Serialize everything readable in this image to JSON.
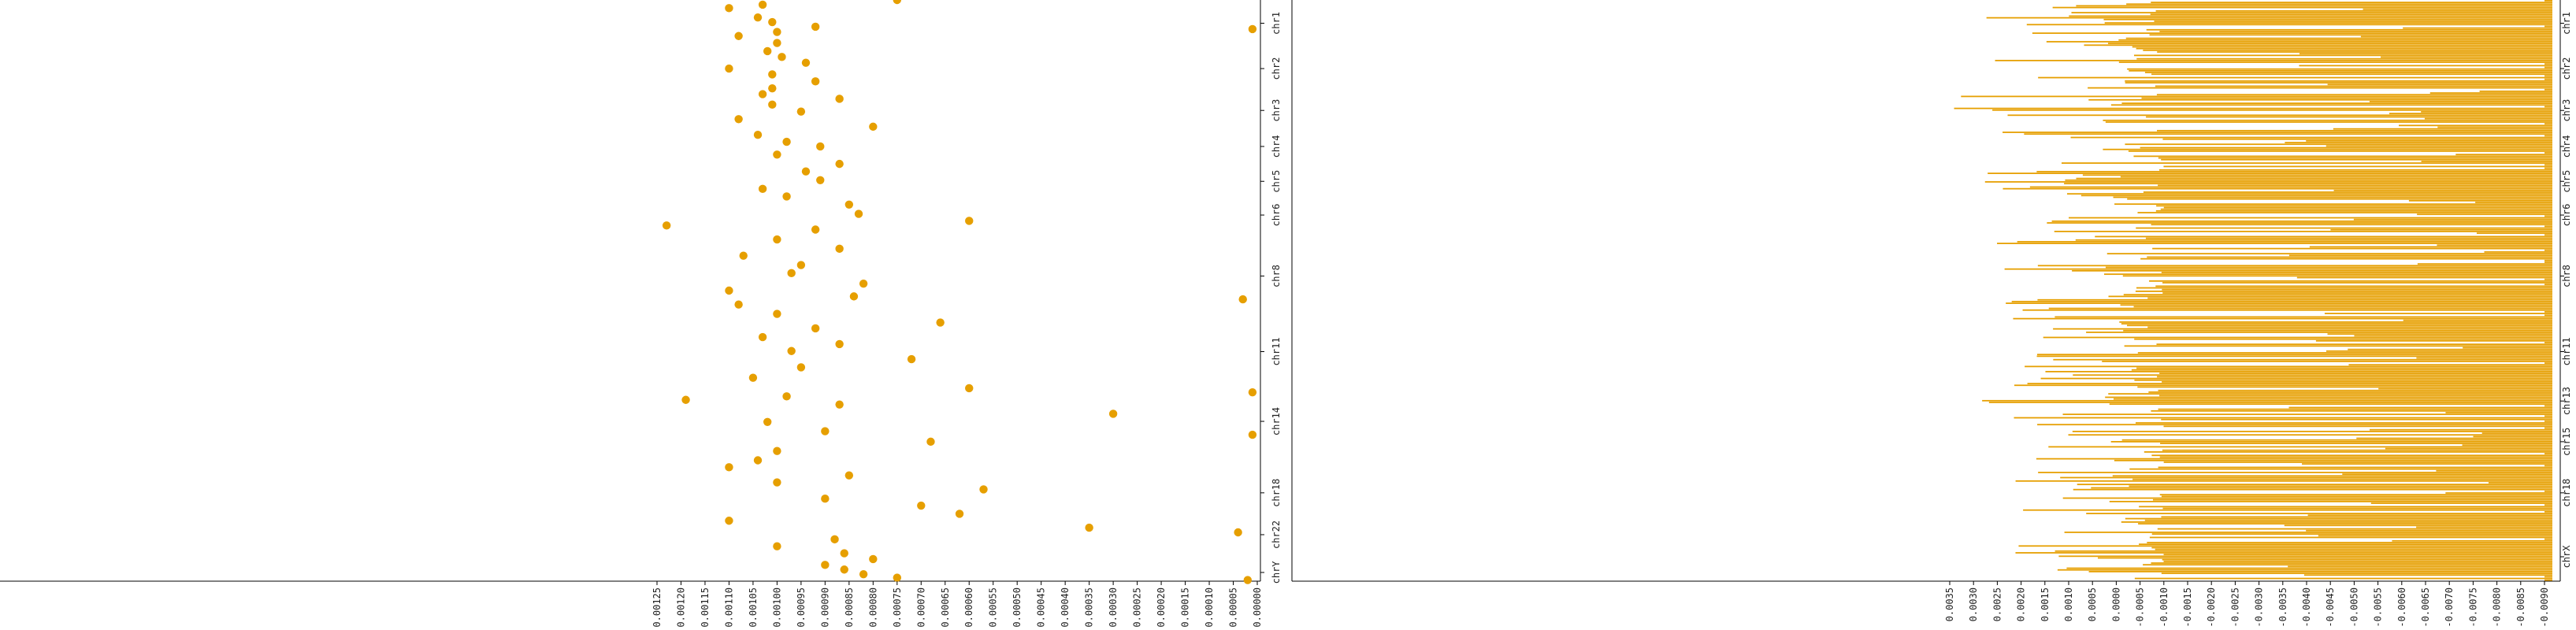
{
  "colors": {
    "accent": "#E69F00",
    "axis": "#000000",
    "text": "#222222",
    "background": "#ffffff"
  },
  "chart_data": [
    {
      "type": "scatter",
      "title": "",
      "xlabel": "",
      "ylabel": "",
      "grid": false,
      "chromosomes": [
        "chr1",
        "chr2",
        "chr3",
        "chr4",
        "chr5",
        "chr6",
        "chr8",
        "chr11",
        "chr14",
        "chr18",
        "chr22",
        "chrY"
      ],
      "x_ticks": [
        "0.00125",
        "0.00120",
        "0.00115",
        "0.00110",
        "0.00105",
        "0.00100",
        "0.00095",
        "0.00090",
        "0.00085",
        "0.00080",
        "0.00075",
        "0.00070",
        "0.00065",
        "0.00060",
        "0.00055",
        "0.00050",
        "0.00045",
        "0.00040",
        "0.00035",
        "0.00030",
        "0.00025",
        "0.00020",
        "0.00015",
        "0.00010",
        "0.00005",
        "0.00000"
      ],
      "xlim": [
        0.00125,
        0.0
      ],
      "points": [
        {
          "x": 0.00104,
          "y": 0.03
        },
        {
          "x": 0.00101,
          "y": 0.038
        },
        {
          "x": 0.00092,
          "y": 0.046
        },
        {
          "x": 0.001,
          "y": 0.055
        },
        {
          "x": 0.00108,
          "y": 0.062
        },
        {
          "x": 0.001,
          "y": 0.074
        },
        {
          "x": 0.00102,
          "y": 0.088
        },
        {
          "x": 0.00099,
          "y": 0.098
        },
        {
          "x": 0.00094,
          "y": 0.108
        },
        {
          "x": 0.0011,
          "y": 0.118
        },
        {
          "x": 0.00101,
          "y": 0.128
        },
        {
          "x": 0.00092,
          "y": 0.14
        },
        {
          "x": 0.00101,
          "y": 0.152
        },
        {
          "x": 0.00103,
          "y": 0.162
        },
        {
          "x": 0.00087,
          "y": 0.17
        },
        {
          "x": 0.00101,
          "y": 0.18
        },
        {
          "x": 0.00095,
          "y": 0.192
        },
        {
          "x": 0.00108,
          "y": 0.205
        },
        {
          "x": 0.0008,
          "y": 0.218
        },
        {
          "x": 0.00104,
          "y": 0.232
        },
        {
          "x": 0.00098,
          "y": 0.244
        },
        {
          "x": 0.00091,
          "y": 0.252
        },
        {
          "x": 0.001,
          "y": 0.266
        },
        {
          "x": 0.00087,
          "y": 0.282
        },
        {
          "x": 0.00094,
          "y": 0.295
        },
        {
          "x": 0.00091,
          "y": 0.31
        },
        {
          "x": 0.00103,
          "y": 0.325
        },
        {
          "x": 0.00098,
          "y": 0.338
        },
        {
          "x": 0.00085,
          "y": 0.352
        },
        {
          "x": 0.00083,
          "y": 0.368
        },
        {
          "x": 0.0006,
          "y": 0.38
        },
        {
          "x": 0.00092,
          "y": 0.395
        },
        {
          "x": 0.001,
          "y": 0.412
        },
        {
          "x": 0.00087,
          "y": 0.428
        },
        {
          "x": 0.00107,
          "y": 0.44
        },
        {
          "x": 0.00095,
          "y": 0.456
        },
        {
          "x": 0.00097,
          "y": 0.47
        },
        {
          "x": 0.00082,
          "y": 0.488
        },
        {
          "x": 0.0011,
          "y": 0.5
        },
        {
          "x": 0.00084,
          "y": 0.51
        },
        {
          "x": 0.00108,
          "y": 0.524
        },
        {
          "x": 0.001,
          "y": 0.54
        },
        {
          "x": 0.00066,
          "y": 0.555
        },
        {
          "x": 0.00092,
          "y": 0.565
        },
        {
          "x": 0.00103,
          "y": 0.58
        },
        {
          "x": 0.00087,
          "y": 0.592
        },
        {
          "x": 0.00097,
          "y": 0.604
        },
        {
          "x": 0.00072,
          "y": 0.618
        },
        {
          "x": 0.00095,
          "y": 0.632
        },
        {
          "x": 0.00105,
          "y": 0.65
        },
        {
          "x": 0.0006,
          "y": 0.668
        },
        {
          "x": 0.00098,
          "y": 0.682
        },
        {
          "x": 0.00087,
          "y": 0.696
        },
        {
          "x": 0.0003,
          "y": 0.712
        },
        {
          "x": 0.00102,
          "y": 0.726
        },
        {
          "x": 0.0009,
          "y": 0.742
        },
        {
          "x": 0.00068,
          "y": 0.76
        },
        {
          "x": 0.001,
          "y": 0.776
        },
        {
          "x": 0.00104,
          "y": 0.792
        },
        {
          "x": 0.0011,
          "y": 0.804
        },
        {
          "x": 0.00085,
          "y": 0.818
        },
        {
          "x": 0.001,
          "y": 0.83
        },
        {
          "x": 0.00057,
          "y": 0.842
        },
        {
          "x": 0.0009,
          "y": 0.858
        },
        {
          "x": 0.0007,
          "y": 0.87
        },
        {
          "x": 0.00062,
          "y": 0.884
        },
        {
          "x": 0.0011,
          "y": 0.896
        },
        {
          "x": 0.00035,
          "y": 0.908
        },
        {
          "x": 4e-05,
          "y": 0.916
        },
        {
          "x": 0.00088,
          "y": 0.928
        },
        {
          "x": 0.001,
          "y": 0.94
        },
        {
          "x": 0.00086,
          "y": 0.952
        },
        {
          "x": 0.0008,
          "y": 0.962
        },
        {
          "x": 0.0009,
          "y": 0.972
        },
        {
          "x": 0.00086,
          "y": 0.98
        },
        {
          "x": 0.00082,
          "y": 0.988
        },
        {
          "x": 0.00075,
          "y": 0.994
        },
        {
          "x": 2e-05,
          "y": 0.998
        },
        {
          "x": 0.00123,
          "y": 0.388
        },
        {
          "x": 0.00119,
          "y": 0.688
        },
        {
          "x": 1e-05,
          "y": 0.05
        },
        {
          "x": 3e-05,
          "y": 0.515
        },
        {
          "x": 1e-05,
          "y": 0.748
        },
        {
          "x": 1e-05,
          "y": 0.675
        },
        {
          "x": 0.00075,
          "y": 0.0
        },
        {
          "x": 0.00103,
          "y": 0.008
        },
        {
          "x": 0.0011,
          "y": 0.014
        }
      ]
    },
    {
      "type": "bar",
      "title": "",
      "xlabel": "",
      "ylabel": "",
      "grid": false,
      "orientation": "horizontal",
      "chromosomes": [
        "chr1",
        "chr2",
        "chr3",
        "chr4",
        "chr5",
        "chr6",
        "chr8",
        "chr11",
        "chr13",
        "chr15",
        "chr18",
        "chrX"
      ],
      "x_ticks": [
        "0.0035",
        "0.0030",
        "0.0025",
        "0.0020",
        "0.0015",
        "0.0010",
        "0.0005",
        "0.0000",
        "-0.0005",
        "-0.0010",
        "-0.0015",
        "-0.0020",
        "-0.0025",
        "-0.0030",
        "-0.0035",
        "-0.0040",
        "-0.0045",
        "-0.0050",
        "-0.0055",
        "-0.0060",
        "-0.0065",
        "-0.0070",
        "-0.0075",
        "-0.0080",
        "-0.0085",
        "-0.0090"
      ],
      "xlim": [
        0.0035,
        -0.009
      ],
      "bar_count": 340,
      "value_range": [
        -0.009,
        0.0035
      ]
    }
  ]
}
